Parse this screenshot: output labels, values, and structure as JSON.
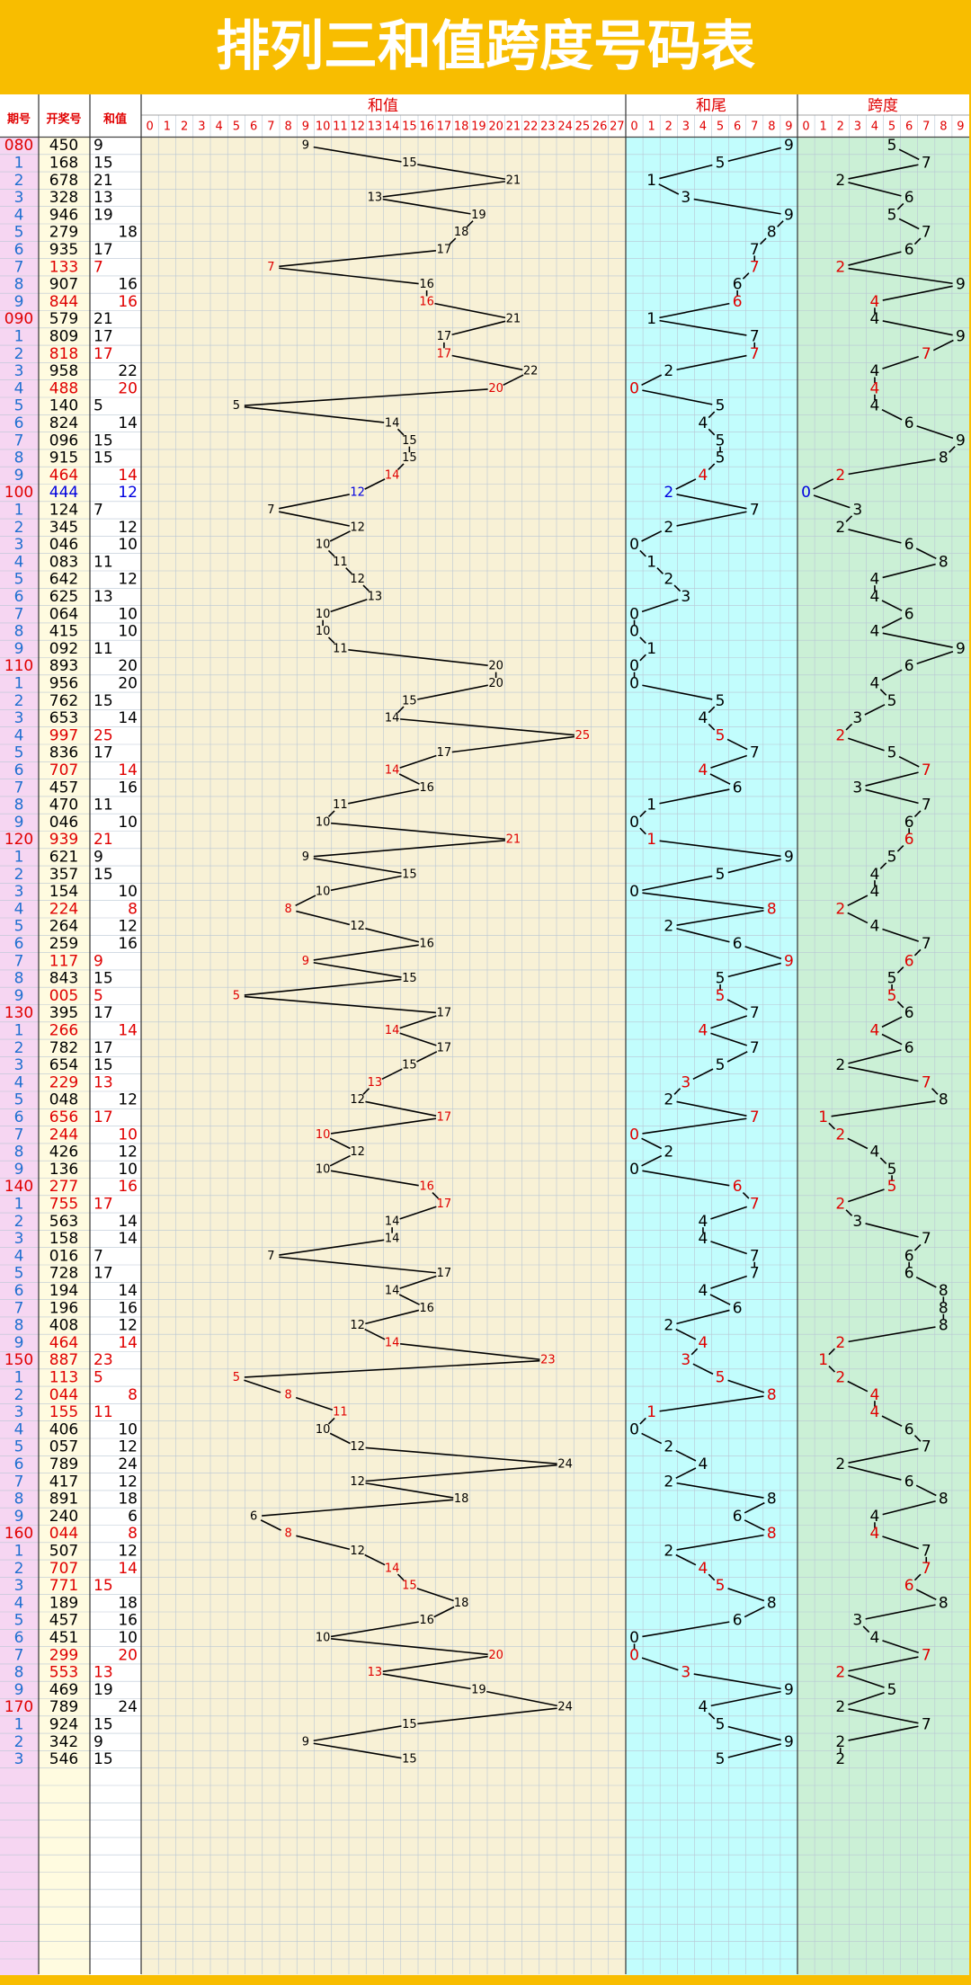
{
  "title": "排列三和值跨度号码表",
  "headers": {
    "period": "期号",
    "number": "开奖号",
    "sum": "和值",
    "sum_chart": "和值",
    "tail_chart": "和尾",
    "span_chart": "跨度"
  },
  "sum_scale": [
    0,
    1,
    2,
    3,
    4,
    5,
    6,
    7,
    8,
    9,
    10,
    11,
    12,
    13,
    14,
    15,
    16,
    17,
    18,
    19,
    20,
    21,
    22,
    23,
    24,
    25,
    26,
    27
  ],
  "tail_scale": [
    0,
    1,
    2,
    3,
    4,
    5,
    6,
    7,
    8,
    9
  ],
  "span_scale": [
    0,
    1,
    2,
    3,
    4,
    5,
    6,
    7,
    8,
    9
  ],
  "colors": {
    "normal": "#000000",
    "pair": "#e00000",
    "triple": "#0000e0",
    "period": "#1e6fd0",
    "period_decade": "#e00000",
    "header": "#e00000",
    "line": "#000000"
  },
  "rows": {
    "period": [
      "080",
      "1",
      "2",
      "3",
      "4",
      "5",
      "6",
      "7",
      "8",
      "9",
      "090",
      "1",
      "2",
      "3",
      "4",
      "5",
      "6",
      "7",
      "8",
      "9",
      "100",
      "1",
      "2",
      "3",
      "4",
      "5",
      "6",
      "7",
      "8",
      "9",
      "110",
      "1",
      "2",
      "3",
      "4",
      "5",
      "6",
      "7",
      "8",
      "9",
      "120",
      "1",
      "2",
      "3",
      "4",
      "5",
      "6",
      "7",
      "8",
      "9",
      "130",
      "1",
      "2",
      "3",
      "4",
      "5",
      "6",
      "7",
      "8",
      "9",
      "140",
      "1",
      "2",
      "3",
      "4",
      "5",
      "6",
      "7",
      "8",
      "9",
      "150",
      "1",
      "2",
      "3",
      "4",
      "5",
      "6",
      "7",
      "8",
      "9",
      "160",
      "1",
      "2",
      "3",
      "4",
      "5",
      "6",
      "7",
      "8",
      "9",
      "170",
      "1",
      "2",
      "3"
    ],
    "number": [
      "450",
      "168",
      "678",
      "328",
      "946",
      "279",
      "935",
      "133",
      "907",
      "844",
      "579",
      "809",
      "818",
      "958",
      "488",
      "140",
      "824",
      "096",
      "915",
      "464",
      "444",
      "124",
      "345",
      "046",
      "083",
      "642",
      "625",
      "064",
      "415",
      "092",
      "893",
      "956",
      "762",
      "653",
      "997",
      "836",
      "707",
      "457",
      "470",
      "046",
      "939",
      "621",
      "357",
      "154",
      "224",
      "264",
      "259",
      "117",
      "843",
      "005",
      "395",
      "266",
      "782",
      "654",
      "229",
      "048",
      "656",
      "244",
      "426",
      "136",
      "277",
      "755",
      "563",
      "158",
      "016",
      "728",
      "194",
      "196",
      "408",
      "464",
      "887",
      "113",
      "044",
      "155",
      "406",
      "057",
      "789",
      "417",
      "891",
      "240",
      "044",
      "507",
      "707",
      "771",
      "189",
      "457",
      "451",
      "299",
      "553",
      "469",
      "789",
      "924",
      "342",
      "546"
    ],
    "sum": [
      9,
      15,
      21,
      13,
      19,
      18,
      17,
      7,
      16,
      16,
      21,
      17,
      17,
      22,
      20,
      5,
      14,
      15,
      15,
      14,
      12,
      7,
      12,
      10,
      11,
      12,
      13,
      10,
      10,
      11,
      20,
      20,
      15,
      14,
      25,
      17,
      14,
      16,
      11,
      10,
      21,
      9,
      15,
      10,
      8,
      12,
      16,
      9,
      15,
      5,
      17,
      14,
      17,
      15,
      13,
      12,
      17,
      10,
      12,
      10,
      16,
      17,
      14,
      14,
      7,
      17,
      14,
      16,
      12,
      14,
      23,
      5,
      8,
      11,
      10,
      12,
      24,
      12,
      18,
      6,
      8,
      12,
      14,
      15,
      18,
      16,
      10,
      20,
      13,
      19,
      24,
      15,
      9,
      15
    ],
    "tail": [
      9,
      5,
      1,
      3,
      9,
      8,
      7,
      7,
      6,
      6,
      1,
      7,
      7,
      2,
      0,
      5,
      4,
      5,
      5,
      4,
      2,
      7,
      2,
      0,
      1,
      2,
      3,
      0,
      0,
      1,
      0,
      0,
      5,
      4,
      5,
      7,
      4,
      6,
      1,
      0,
      1,
      9,
      5,
      0,
      8,
      2,
      6,
      9,
      5,
      5,
      7,
      4,
      7,
      5,
      3,
      2,
      7,
      0,
      2,
      0,
      6,
      7,
      4,
      4,
      7,
      7,
      4,
      6,
      2,
      4,
      3,
      5,
      8,
      1,
      0,
      2,
      4,
      2,
      8,
      6,
      8,
      2,
      4,
      5,
      8,
      6,
      0,
      0,
      3,
      9,
      4,
      5,
      9,
      5
    ],
    "span": [
      5,
      7,
      2,
      6,
      5,
      7,
      6,
      2,
      9,
      4,
      4,
      9,
      7,
      4,
      4,
      4,
      6,
      9,
      8,
      2,
      0,
      3,
      2,
      6,
      8,
      4,
      4,
      6,
      4,
      9,
      6,
      4,
      5,
      3,
      2,
      5,
      7,
      3,
      7,
      6,
      6,
      5,
      4,
      4,
      2,
      4,
      7,
      6,
      5,
      5,
      6,
      4,
      6,
      2,
      7,
      8,
      1,
      2,
      4,
      5,
      5,
      2,
      3,
      7,
      6,
      6,
      8,
      8,
      8,
      2,
      1,
      2,
      4,
      4,
      6,
      7,
      2,
      6,
      8,
      4,
      4,
      7,
      7,
      6,
      8,
      3,
      4,
      7,
      2,
      5,
      2,
      7,
      2,
      2
    ]
  }
}
